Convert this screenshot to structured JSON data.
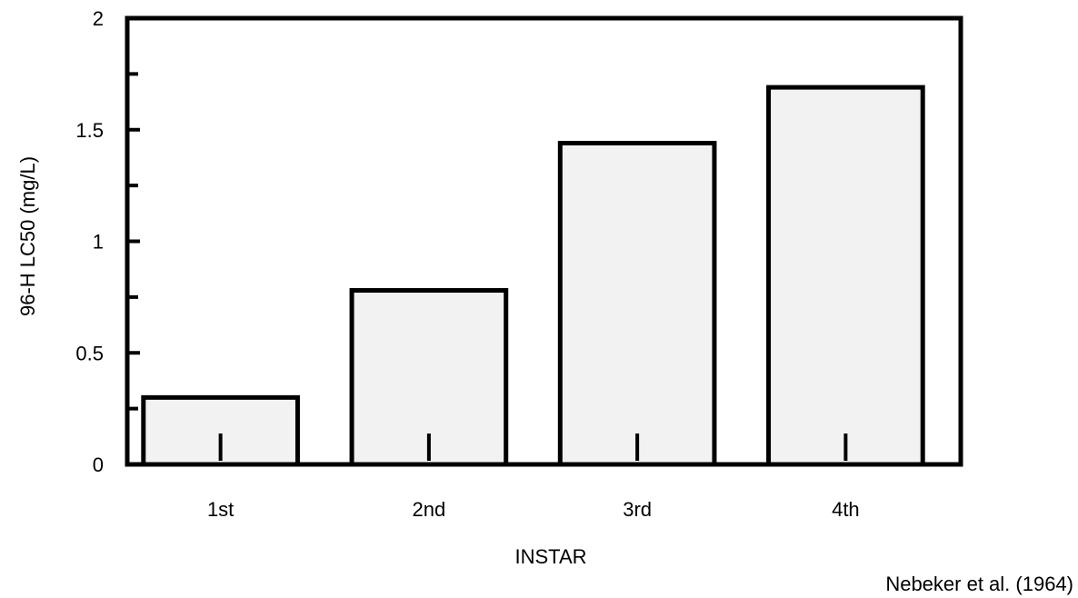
{
  "chart_data": {
    "type": "bar",
    "title": "",
    "xlabel": "INSTAR",
    "ylabel": "96-H LC50 (mg/L)",
    "categories": [
      "1st",
      "2nd",
      "3rd",
      "4th"
    ],
    "values": [
      0.3,
      0.78,
      1.44,
      1.69
    ],
    "ylim": [
      0,
      2
    ],
    "yticks": [
      0,
      0.5,
      1,
      1.5,
      2
    ],
    "ytick_labels": [
      "0",
      "0.5",
      "1",
      "1.5",
      "2"
    ],
    "grid": false,
    "legend": "none",
    "bar_fill": "#f2f2f2",
    "bar_stroke": "#000000"
  },
  "credit": "Nebeker et al. (1964)"
}
